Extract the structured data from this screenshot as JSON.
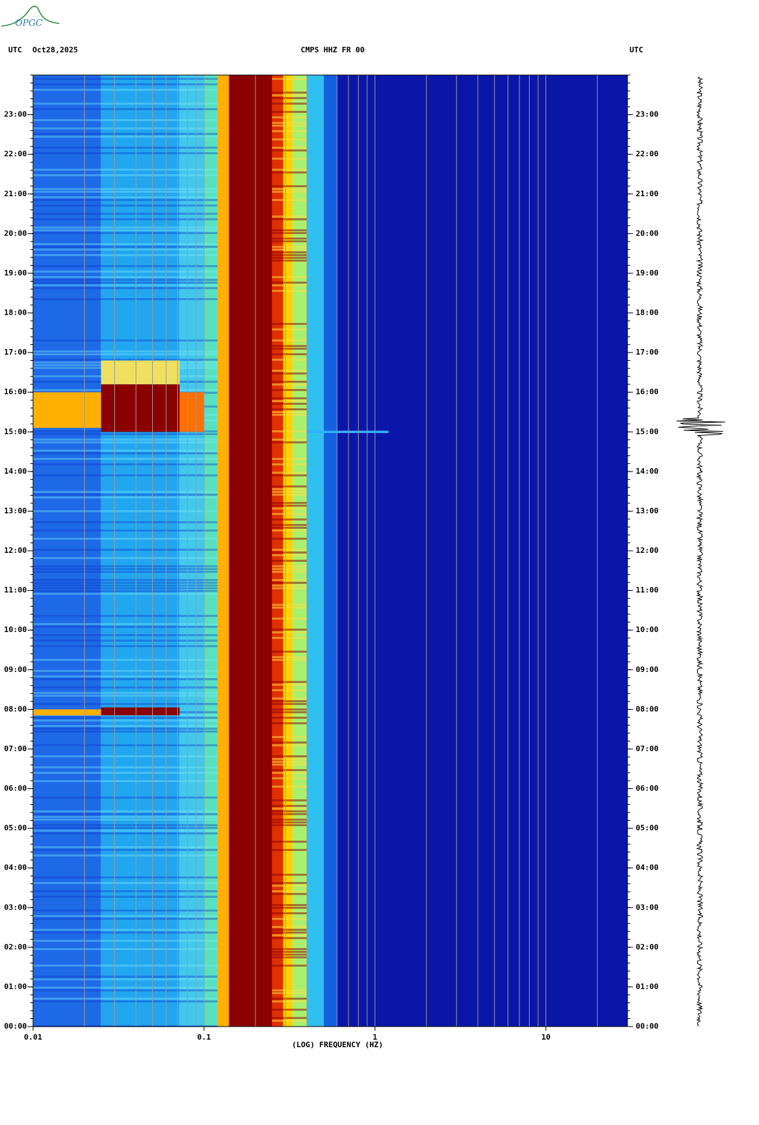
{
  "logo": "OPGC",
  "chart_data": {
    "type": "spectrogram",
    "header_left": "UTC",
    "date": "Oct28,2025",
    "title": "CMPS HHZ FR 00",
    "header_right": "UTC",
    "x_label": "(LOG) FREQUENCY (HZ)",
    "x_scale": "log",
    "xlim": [
      0.01,
      30
    ],
    "xticks": [
      0.01,
      0.1,
      1,
      10
    ],
    "x_grid_lines": [
      0.02,
      0.03,
      0.04,
      0.05,
      0.06,
      0.07,
      0.08,
      0.09,
      0.1,
      0.2,
      0.3,
      0.4,
      0.5,
      0.6,
      0.7,
      0.8,
      0.9,
      1,
      2,
      3,
      4,
      5,
      6,
      7,
      8,
      9,
      10,
      20
    ],
    "grid_color": "#9a9a9a",
    "ylim": [
      0,
      24
    ],
    "yticks": [
      {
        "value": 0,
        "label": "00:00"
      },
      {
        "value": 1,
        "label": "01:00"
      },
      {
        "value": 2,
        "label": "02:00"
      },
      {
        "value": 3,
        "label": "03:00"
      },
      {
        "value": 4,
        "label": "04:00"
      },
      {
        "value": 5,
        "label": "05:00"
      },
      {
        "value": 6,
        "label": "06:00"
      },
      {
        "value": 7,
        "label": "07:00"
      },
      {
        "value": 8,
        "label": "08:00"
      },
      {
        "value": 9,
        "label": "09:00"
      },
      {
        "value": 10,
        "label": "10:00"
      },
      {
        "value": 11,
        "label": "11:00"
      },
      {
        "value": 12,
        "label": "12:00"
      },
      {
        "value": 13,
        "label": "13:00"
      },
      {
        "value": 14,
        "label": "14:00"
      },
      {
        "value": 15,
        "label": "15:00"
      },
      {
        "value": 16,
        "label": "16:00"
      },
      {
        "value": 17,
        "label": "17:00"
      },
      {
        "value": 18,
        "label": "18:00"
      },
      {
        "value": 19,
        "label": "19:00"
      },
      {
        "value": 20,
        "label": "20:00"
      },
      {
        "value": 21,
        "label": "21:00"
      },
      {
        "value": 22,
        "label": "22:00"
      },
      {
        "value": 23,
        "label": "23:00"
      }
    ],
    "bands": [
      {
        "from": 0.01,
        "to": 0.025,
        "color": "#1e6ae6"
      },
      {
        "from": 0.025,
        "to": 0.072,
        "color": "#22a6f0"
      },
      {
        "from": 0.072,
        "to": 0.1,
        "color": "#40c8ee"
      },
      {
        "from": 0.1,
        "to": 0.12,
        "color": "#58e0c0"
      },
      {
        "from": 0.12,
        "to": 0.14,
        "color": "#ffb000"
      },
      {
        "from": 0.14,
        "to": 0.25,
        "color": "#8b0000"
      },
      {
        "from": 0.25,
        "to": 0.29,
        "color": "#e03000"
      },
      {
        "from": 0.29,
        "to": 0.33,
        "color": "#ffd000"
      },
      {
        "from": 0.33,
        "to": 0.4,
        "color": "#a8f070"
      },
      {
        "from": 0.4,
        "to": 0.5,
        "color": "#30c0f0"
      },
      {
        "from": 0.5,
        "to": 0.6,
        "color": "#1262e0"
      },
      {
        "from": 0.6,
        "to": 30,
        "color": "#0a16a8"
      }
    ],
    "events": [
      {
        "x0": 0.01,
        "x1": 0.025,
        "y0": 15.1,
        "y1": 16.0,
        "color": "#ffb000"
      },
      {
        "x0": 0.025,
        "x1": 0.072,
        "y0": 15.0,
        "y1": 16.2,
        "color": "#8b0000"
      },
      {
        "x0": 0.025,
        "x1": 0.072,
        "y0": 16.2,
        "y1": 16.8,
        "color": "#f0e060"
      },
      {
        "x0": 0.072,
        "x1": 0.1,
        "y0": 15.0,
        "y1": 16.0,
        "color": "#ff7000"
      },
      {
        "x0": 0.01,
        "x1": 0.025,
        "y0": 7.85,
        "y1": 8.0,
        "color": "#ffb000"
      },
      {
        "x0": 0.025,
        "x1": 0.072,
        "y0": 7.85,
        "y1": 8.05,
        "color": "#8b0000"
      },
      {
        "x0": 0.4,
        "x1": 1.2,
        "y0": 14.97,
        "y1": 15.03,
        "color": "#30b0ff"
      }
    ]
  }
}
